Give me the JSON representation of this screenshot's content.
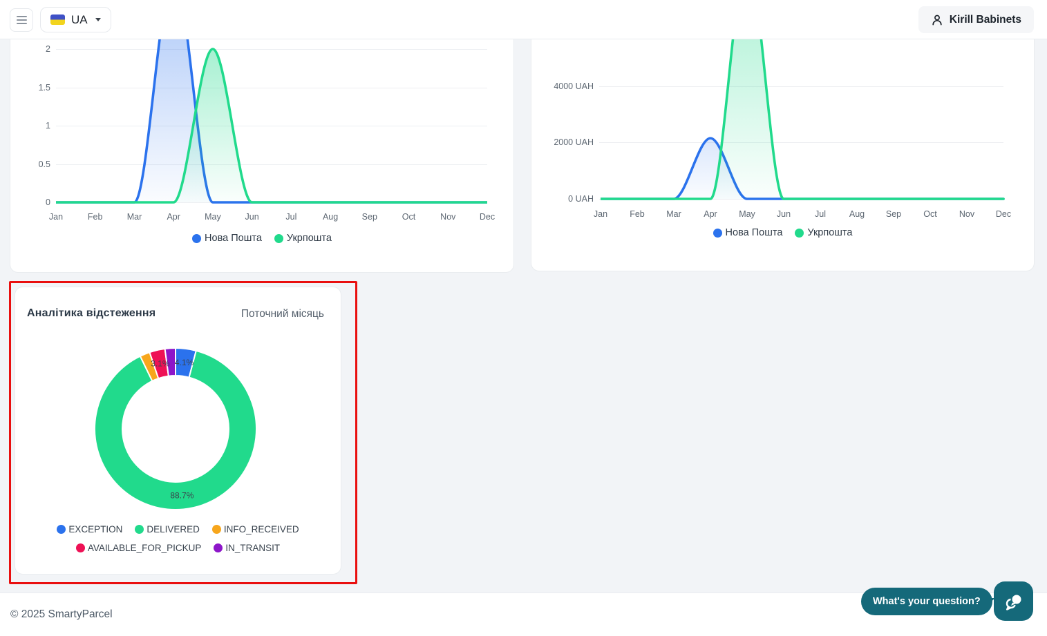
{
  "header": {
    "menu_button": {
      "icon": "hamburger-icon"
    },
    "language_selector": {
      "flag_icon": "ukraine-flag-icon",
      "code": "UA",
      "caret_icon": "chevron-down-icon"
    },
    "user_button": {
      "icon": "person-icon",
      "name": "Kirill Babinets"
    }
  },
  "colors": {
    "accent_blue": "#2b72ed",
    "accent_green": "#21da8c",
    "accent_orange": "#f7a61c",
    "accent_pink": "#ee1155",
    "accent_purple": "#8d16c9",
    "chat_teal": "#15697a",
    "annotation_red": "#e90f0f"
  },
  "chart_data": [
    {
      "type": "area",
      "id": "shipments-by-month",
      "x": [
        "Jan",
        "Feb",
        "Mar",
        "Apr",
        "May",
        "Jun",
        "Jul",
        "Aug",
        "Sep",
        "Oct",
        "Nov",
        "Dec"
      ],
      "yticks": [
        "0",
        "0.5",
        "1",
        "1.5",
        "2"
      ],
      "ytick_values": [
        0,
        0.5,
        1,
        1.5,
        2
      ],
      "visible_ylim": [
        0,
        2.13
      ],
      "grid": true,
      "legend_position": "bottom",
      "series": [
        {
          "name": "Нова Пошта",
          "color": "#2b72ed",
          "values": [
            0,
            0,
            0,
            3,
            0,
            0,
            0,
            0,
            0,
            0,
            0,
            0
          ]
        },
        {
          "name": "Укрпошта",
          "color": "#21da8c",
          "values": [
            0,
            0,
            0,
            0,
            2,
            0,
            0,
            0,
            0,
            0,
            0,
            0
          ]
        }
      ]
    },
    {
      "type": "area",
      "id": "revenue-by-month",
      "x": [
        "Jan",
        "Feb",
        "Mar",
        "Apr",
        "May",
        "Jun",
        "Jul",
        "Aug",
        "Sep",
        "Oct",
        "Nov",
        "Dec"
      ],
      "yticks": [
        "0 UAH",
        "2000 UAH",
        "4000 UAH"
      ],
      "ytick_values": [
        0,
        2000,
        4000
      ],
      "visible_ylim": [
        0,
        5650
      ],
      "grid": true,
      "legend_position": "bottom",
      "series": [
        {
          "name": "Нова Пошта",
          "color": "#2b72ed",
          "values": [
            0,
            0,
            0,
            2150,
            0,
            0,
            0,
            0,
            0,
            0,
            0,
            0
          ]
        },
        {
          "name": "Укрпошта",
          "color": "#21da8c",
          "values": [
            0,
            0,
            0,
            0,
            8500,
            0,
            0,
            0,
            0,
            0,
            0,
            0
          ]
        }
      ]
    },
    {
      "type": "pie",
      "id": "tracking-analytics",
      "title": "Аналітика відстеження",
      "subtitle": "Поточний місяць",
      "donut": true,
      "legend_position": "bottom",
      "segments": [
        {
          "label": "EXCEPTION",
          "value": 4.1,
          "color": "#2b72ed",
          "datalabel": "4.1%"
        },
        {
          "label": "DELIVERED",
          "value": 88.7,
          "color": "#21da8c",
          "datalabel": "88.7%"
        },
        {
          "label": "INFO_RECEIVED",
          "value": 2.0,
          "color": "#f7a61c",
          "datalabel": ""
        },
        {
          "label": "AVAILABLE_FOR_PICKUP",
          "value": 3.1,
          "color": "#ee1155",
          "datalabel": "3.1%"
        },
        {
          "label": "IN_TRANSIT",
          "value": 2.1,
          "color": "#8d16c9",
          "datalabel": ""
        }
      ]
    }
  ],
  "annotation": {
    "highlight_color": "#e90f0f"
  },
  "footer": {
    "copyright": "© 2025 SmartyParcel"
  },
  "chat_widget": {
    "tooltip": "What's your question?",
    "icon": "chat-bubbles-icon"
  }
}
